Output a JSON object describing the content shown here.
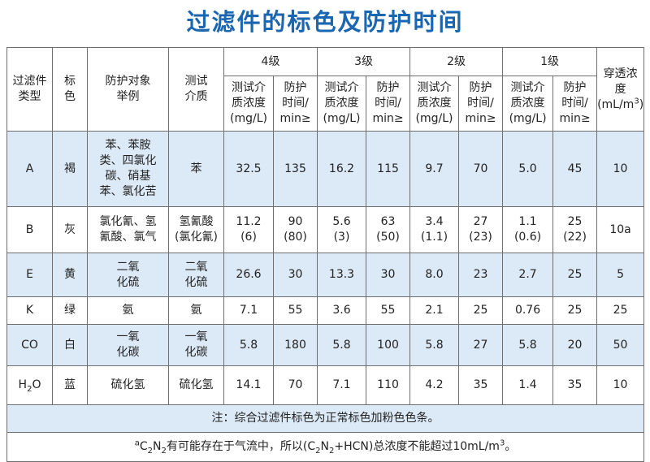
{
  "title": "过滤件的标色及防护时间",
  "header": {
    "type": "过滤件\n类型",
    "color": "标\n色",
    "examples": "防护对象\n举例",
    "medium": "测试\n介质",
    "grades": [
      "4级",
      "3级",
      "2级",
      "1级"
    ],
    "conc": "测试介\n质浓度\n(mg/L)",
    "time": "防护\n时间/\nmin≥",
    "penetration_pre": "穿透浓\n度\n(mL/m",
    "penetration_sup": "3",
    "penetration_post": ")"
  },
  "rows": [
    {
      "type": "A",
      "color": "褐",
      "examples": "苯、苯胺\n类、四氯化\n碳、硝基\n苯、氯化苦",
      "medium": "苯",
      "values": [
        "32.5",
        "135",
        "16.2",
        "115",
        "9.7",
        "70",
        "5.0",
        "45"
      ],
      "penetration": "10"
    },
    {
      "type": "B",
      "color": "灰",
      "examples": "氯化氰、氢\n氰酸、氯气",
      "medium": "氢氰酸\n(氯化氰)",
      "values": [
        "11.2\n(6)",
        "90\n(80)",
        "5.6\n(3)",
        "63\n(50)",
        "3.4\n(1.1)",
        "27\n(23)",
        "1.1\n(0.6)",
        "25\n(22)"
      ],
      "penetration": "10a"
    },
    {
      "type": "E",
      "color": "黄",
      "examples": "二氧\n化硫",
      "medium": "二氧\n化硫",
      "values": [
        "26.6",
        "30",
        "13.3",
        "30",
        "8.0",
        "23",
        "2.7",
        "25"
      ],
      "penetration": "5"
    },
    {
      "type": "K",
      "color": "绿",
      "examples": "氨",
      "medium": "氨",
      "values": [
        "7.1",
        "55",
        "3.6",
        "55",
        "2.1",
        "25",
        "0.76",
        "25"
      ],
      "penetration": "25"
    },
    {
      "type": "CO",
      "color": "白",
      "examples": "一氧\n化碳",
      "medium": "一氧\n化碳",
      "values": [
        "5.8",
        "180",
        "5.8",
        "100",
        "5.8",
        "27",
        "5.8",
        "20"
      ],
      "penetration": "50"
    },
    {
      "type_main": "H",
      "type_sub": "2",
      "type_post": "O",
      "color": "蓝",
      "examples": "硫化氢",
      "medium": "硫化氢",
      "values": [
        "14.1",
        "70",
        "7.1",
        "110",
        "4.2",
        "35",
        "1.4",
        "35"
      ],
      "penetration": "10"
    }
  ],
  "note1": "注：综合过滤件标色为正常标色加粉色色条。",
  "note2": {
    "sup_a": "a",
    "t1": "C",
    "s1": "2",
    "t2": "N",
    "s2": "2",
    "t3": "有可能存在于气流中，所以(C",
    "s3": "2",
    "t4": "N",
    "s4": "2",
    "t5": "+HCN)总浓度不能超过10mL/m",
    "sup3": "3",
    "t6": "。"
  }
}
